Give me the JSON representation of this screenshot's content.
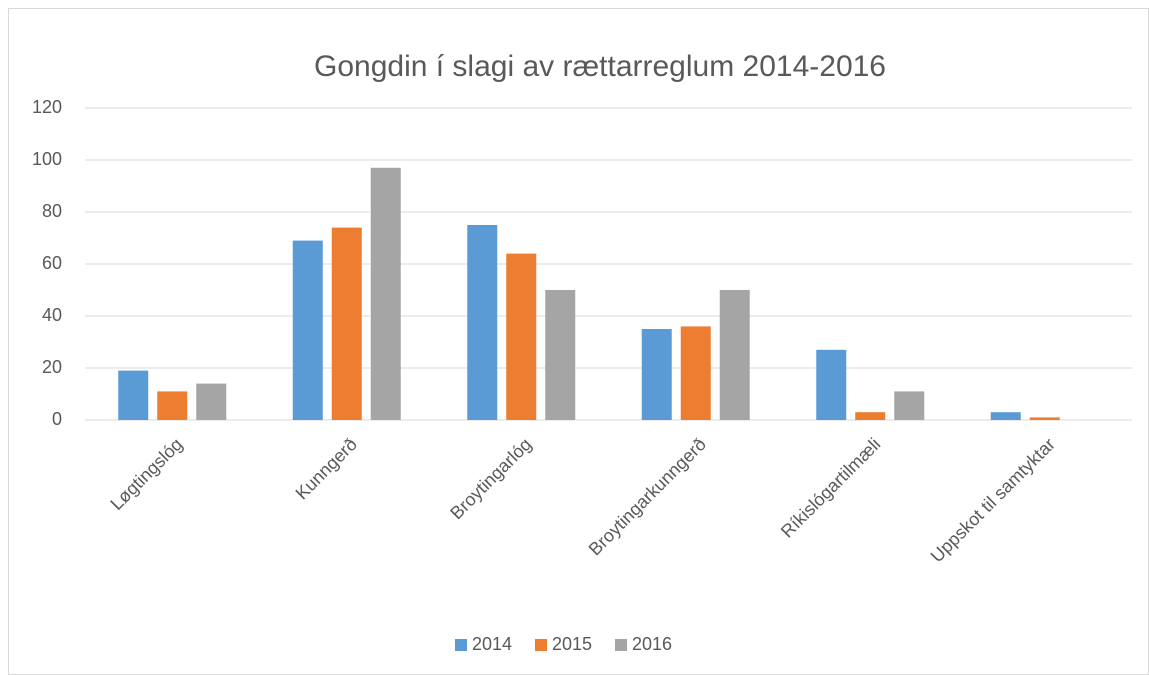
{
  "chart_data": {
    "type": "bar",
    "title": "Gongdin í slagi av rættarreglum 2014-2016",
    "categories": [
      "Løgtingslóg",
      "Kunngerð",
      "Broytingarlóg",
      "Broytingarkunngerð",
      "Ríkislógartilmæli",
      "Uppskot til samtyktar"
    ],
    "series": [
      {
        "name": "2014",
        "color": "#5b9bd5",
        "values": [
          19,
          69,
          75,
          35,
          27,
          3
        ]
      },
      {
        "name": "2015",
        "color": "#ed7d31",
        "values": [
          11,
          74,
          64,
          36,
          3,
          1
        ]
      },
      {
        "name": "2016",
        "color": "#a5a5a5",
        "values": [
          14,
          97,
          50,
          50,
          11,
          0
        ]
      }
    ],
    "ylim": [
      0,
      120
    ],
    "yticks": [
      0,
      20,
      40,
      60,
      80,
      100,
      120
    ],
    "grid": true,
    "legend": "bottom"
  }
}
